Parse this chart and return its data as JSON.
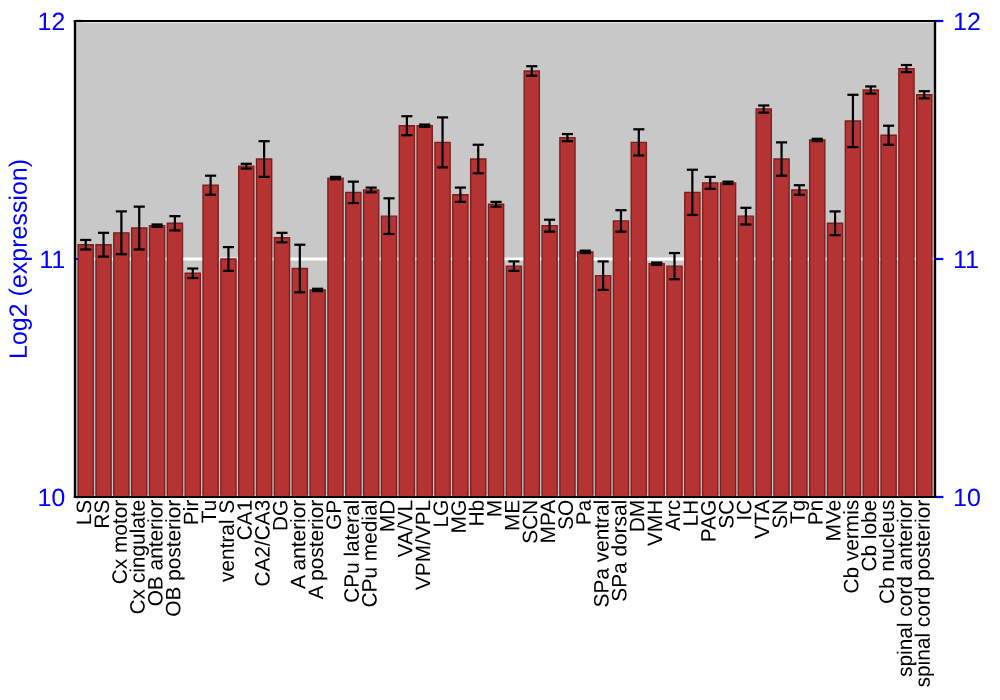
{
  "chart_data": {
    "type": "bar",
    "ylabel": "Log2 (expression)",
    "categories": [
      "LS",
      "RS",
      "Cx motor",
      "Cx cingulate",
      "OB anterior",
      "OB posterior",
      "Pir",
      "Tu",
      "ventral S",
      "CA1",
      "CA2/CA3",
      "DG",
      "A anterior",
      "A posterior",
      "GP",
      "CPu lateral",
      "CPu medial",
      "MD",
      "VA/VL",
      "VPM/VPL",
      "LG",
      "MG",
      "Hb",
      "M",
      "ME",
      "SCN",
      "MPA",
      "SO",
      "Pa",
      "SPa ventral",
      "SPa dorsal",
      "DM",
      "VMH",
      "Arc",
      "LH",
      "PAG",
      "SC",
      "IC",
      "VTA",
      "SN",
      "Tg",
      "Pn",
      "MVe",
      "Cb vermis",
      "Cb lobe",
      "Cb nucleus",
      "spinal cord anterior",
      "spinal cord posterior"
    ],
    "values": [
      11.06,
      11.06,
      11.11,
      11.13,
      11.14,
      11.15,
      10.94,
      11.31,
      11.0,
      11.39,
      11.42,
      11.09,
      10.96,
      10.87,
      11.34,
      11.28,
      11.29,
      11.18,
      11.56,
      11.56,
      11.49,
      11.27,
      11.42,
      11.23,
      10.97,
      11.79,
      11.14,
      11.51,
      11.03,
      10.93,
      11.16,
      11.49,
      10.98,
      10.97,
      11.28,
      11.32,
      11.32,
      11.18,
      11.63,
      11.42,
      11.29,
      11.5,
      11.15,
      11.58,
      11.71,
      11.52,
      11.8,
      11.69
    ],
    "errors": [
      0.02,
      0.05,
      0.09,
      0.09,
      0.005,
      0.03,
      0.02,
      0.04,
      0.05,
      0.01,
      0.075,
      0.02,
      0.1,
      0.005,
      0.005,
      0.045,
      0.01,
      0.075,
      0.04,
      0.005,
      0.105,
      0.03,
      0.06,
      0.01,
      0.02,
      0.02,
      0.025,
      0.015,
      0.005,
      0.06,
      0.045,
      0.055,
      0.005,
      0.055,
      0.095,
      0.025,
      0.005,
      0.035,
      0.015,
      0.07,
      0.02,
      0.005,
      0.05,
      0.11,
      0.015,
      0.04,
      0.015,
      0.015
    ],
    "color": "#b53333",
    "ylim": [
      10,
      12
    ],
    "yticks": [
      10,
      11,
      12
    ],
    "y2lim": [
      10,
      12
    ],
    "y2ticks": [
      10,
      11,
      12
    ],
    "grid": "y"
  }
}
